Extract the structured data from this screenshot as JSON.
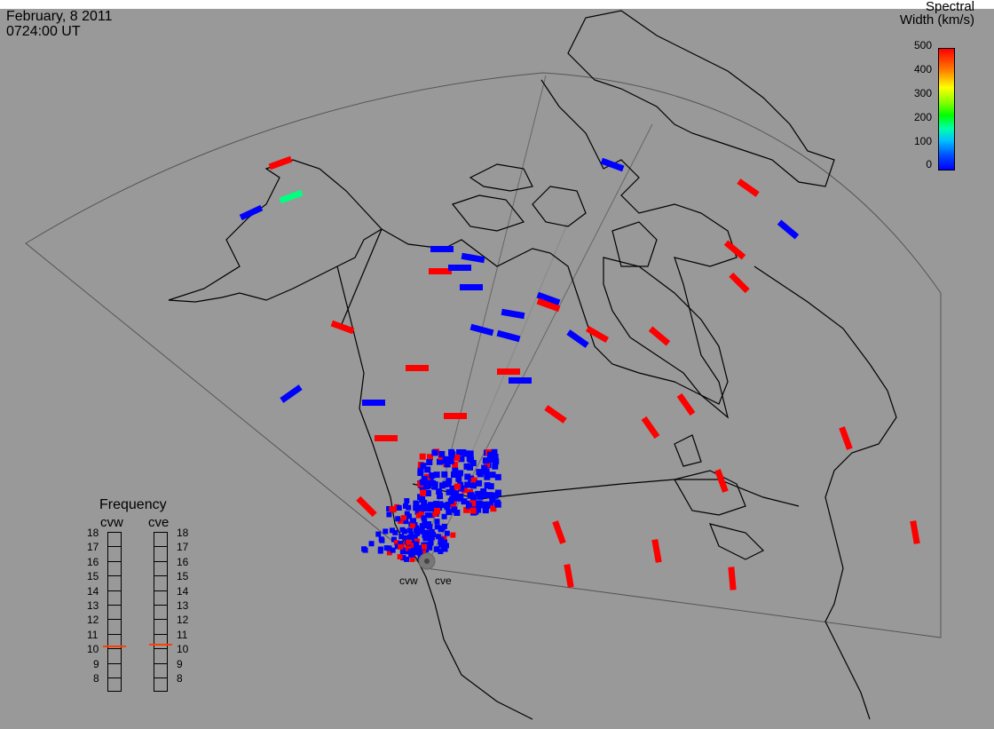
{
  "header": {
    "date": "February, 8 2011",
    "time": "0724:00 UT"
  },
  "legend": {
    "title_line1": "Spectral",
    "title_line2": "Width (km/s)",
    "ticks": [
      "500",
      "400",
      "300",
      "200",
      "100",
      "0"
    ],
    "colors": {
      "low": "#0000ff",
      "mid": "#00ff80",
      "high": "#ff0000"
    }
  },
  "frequency": {
    "title": "Frequency",
    "columns": [
      "cvw",
      "cve"
    ],
    "scale": [
      "18",
      "17",
      "16",
      "15",
      "14",
      "13",
      "12",
      "11",
      "10",
      "9",
      "8"
    ],
    "cvw_value_mhz": 10.7,
    "cve_value_mhz": 10.8,
    "marker_color": "#ff4000"
  },
  "stations": {
    "west": "cvw",
    "east": "cve"
  },
  "background_color": "#999999",
  "coastline_color": "#000000",
  "fov_color": "#555555"
}
